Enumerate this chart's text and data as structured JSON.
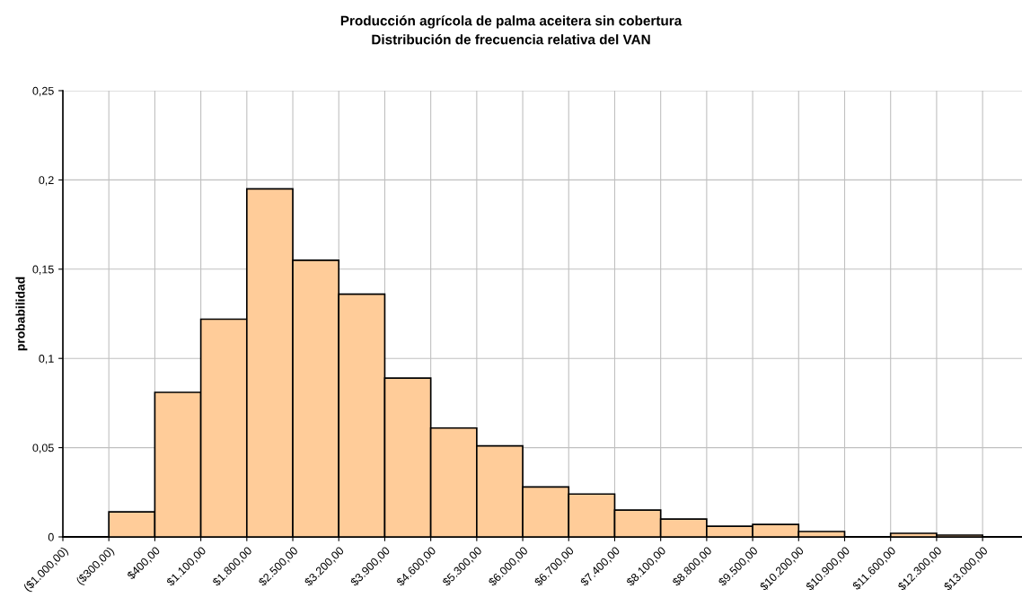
{
  "chart_data": {
    "type": "histogram",
    "title": "Producción agrícola de palma aceitera sin cobertura\nDistribución de frecuencia relativa del VAN",
    "ylabel": "probabilidad",
    "color": "#ffcc99",
    "bins": [
      -1000,
      -300,
      400,
      1100,
      1800,
      2500,
      3200,
      3900,
      4600,
      5300,
      6000,
      6700,
      7400,
      8100,
      8800,
      9500,
      10200,
      10900,
      11600,
      12300,
      13000
    ],
    "values": [
      0,
      0.014,
      0.081,
      0.122,
      0.195,
      0.155,
      0.136,
      0.089,
      0.061,
      0.051,
      0.028,
      0.024,
      0.015,
      0.01,
      0.006,
      0.007,
      0.003,
      0,
      0.002,
      0.001
    ],
    "xlim": [
      -1000,
      13600
    ],
    "xticks": [
      {
        "value": -1000,
        "label": "($1.000,00)"
      },
      {
        "value": -300,
        "label": "($300,00)"
      },
      {
        "value": 400,
        "label": "$400,00"
      },
      {
        "value": 1100,
        "label": "$1.100,00"
      },
      {
        "value": 1800,
        "label": "$1.800,00"
      },
      {
        "value": 2500,
        "label": "$2.500,00"
      },
      {
        "value": 3200,
        "label": "$3.200,00"
      },
      {
        "value": 3900,
        "label": "$3.900,00"
      },
      {
        "value": 4600,
        "label": "$4.600,00"
      },
      {
        "value": 5300,
        "label": "$5.300,00"
      },
      {
        "value": 6000,
        "label": "$6.000,00"
      },
      {
        "value": 6700,
        "label": "$6.700,00"
      },
      {
        "value": 7400,
        "label": "$7.400,00"
      },
      {
        "value": 8100,
        "label": "$8.100,00"
      },
      {
        "value": 8800,
        "label": "$8.800,00"
      },
      {
        "value": 9500,
        "label": "$9.500,00"
      },
      {
        "value": 10200,
        "label": "$10.200,00"
      },
      {
        "value": 10900,
        "label": "$10.900,00"
      },
      {
        "value": 11600,
        "label": "$11.600,00"
      },
      {
        "value": 12300,
        "label": "$12.300,00"
      },
      {
        "value": 13000,
        "label": "$13.000,00"
      }
    ],
    "ylim": [
      0,
      0.25
    ],
    "yticks": [
      0,
      {
        "value": 0.05,
        "label": "0,05"
      },
      {
        "value": 0.1,
        "label": "0,1"
      },
      {
        "value": 0.15,
        "label": "0,15"
      },
      {
        "value": 0.2,
        "label": "0,2"
      },
      {
        "value": 0.25,
        "label": "0,25"
      }
    ],
    "grid": true
  }
}
